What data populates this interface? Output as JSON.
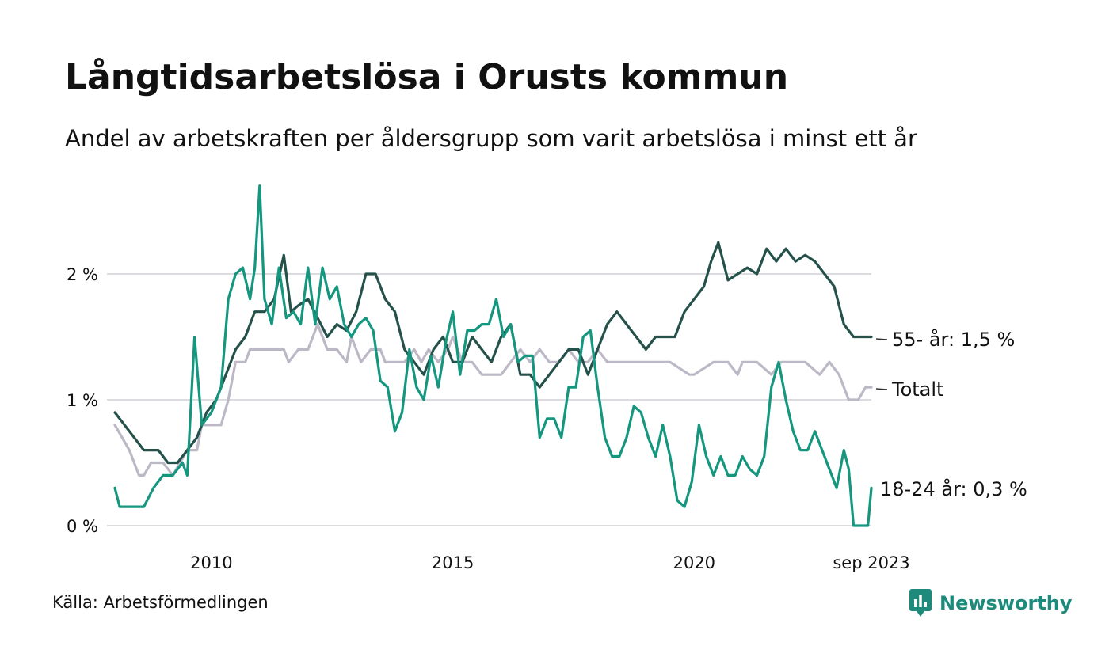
{
  "chart_data": {
    "type": "line",
    "title": "Långtidsarbetslösa i Orusts kommun",
    "subtitle": "Andel av arbetskraften per åldersgrupp som varit arbetslösa i minst ett år",
    "yticks": [
      {
        "value": 0,
        "label": "0 %"
      },
      {
        "value": 1,
        "label": "1 %"
      },
      {
        "value": 2,
        "label": "2 %"
      }
    ],
    "xticks": [
      {
        "value": 2010,
        "label": "2010"
      },
      {
        "value": 2015,
        "label": "2015"
      },
      {
        "value": 2020,
        "label": "2020"
      },
      {
        "value": 2023.67,
        "label": "sep 2023"
      }
    ],
    "xlim": [
      2008.0,
      2023.67
    ],
    "ylim": [
      0,
      2.7
    ],
    "grid": true,
    "series": [
      {
        "name": "Totalt",
        "color": "#bcb8c6",
        "end_label": "Totalt",
        "points": [
          [
            2008.0,
            0.8
          ],
          [
            2008.3,
            0.6
          ],
          [
            2008.5,
            0.4
          ],
          [
            2008.6,
            0.4
          ],
          [
            2008.75,
            0.5
          ],
          [
            2009.0,
            0.5
          ],
          [
            2009.2,
            0.4
          ],
          [
            2009.5,
            0.6
          ],
          [
            2009.7,
            0.6
          ],
          [
            2009.8,
            0.8
          ],
          [
            2010.0,
            0.8
          ],
          [
            2010.2,
            0.8
          ],
          [
            2010.35,
            1.0
          ],
          [
            2010.5,
            1.3
          ],
          [
            2010.7,
            1.3
          ],
          [
            2010.8,
            1.4
          ],
          [
            2011.2,
            1.4
          ],
          [
            2011.5,
            1.4
          ],
          [
            2011.6,
            1.3
          ],
          [
            2011.8,
            1.4
          ],
          [
            2012.0,
            1.4
          ],
          [
            2012.2,
            1.6
          ],
          [
            2012.4,
            1.4
          ],
          [
            2012.6,
            1.4
          ],
          [
            2012.8,
            1.3
          ],
          [
            2012.9,
            1.5
          ],
          [
            2013.1,
            1.3
          ],
          [
            2013.3,
            1.4
          ],
          [
            2013.5,
            1.4
          ],
          [
            2013.6,
            1.3
          ],
          [
            2013.8,
            1.3
          ],
          [
            2014.0,
            1.3
          ],
          [
            2014.2,
            1.4
          ],
          [
            2014.35,
            1.3
          ],
          [
            2014.5,
            1.4
          ],
          [
            2014.7,
            1.3
          ],
          [
            2014.9,
            1.4
          ],
          [
            2015.0,
            1.5
          ],
          [
            2015.2,
            1.3
          ],
          [
            2015.4,
            1.3
          ],
          [
            2015.6,
            1.2
          ],
          [
            2015.8,
            1.2
          ],
          [
            2016.0,
            1.2
          ],
          [
            2016.2,
            1.3
          ],
          [
            2016.4,
            1.4
          ],
          [
            2016.6,
            1.3
          ],
          [
            2016.8,
            1.4
          ],
          [
            2017.0,
            1.3
          ],
          [
            2017.2,
            1.3
          ],
          [
            2017.4,
            1.4
          ],
          [
            2017.6,
            1.3
          ],
          [
            2017.8,
            1.3
          ],
          [
            2018.0,
            1.4
          ],
          [
            2018.2,
            1.3
          ],
          [
            2018.4,
            1.3
          ],
          [
            2018.6,
            1.3
          ],
          [
            2019.0,
            1.3
          ],
          [
            2019.5,
            1.3
          ],
          [
            2019.9,
            1.2
          ],
          [
            2020.0,
            1.2
          ],
          [
            2020.4,
            1.3
          ],
          [
            2020.7,
            1.3
          ],
          [
            2020.9,
            1.2
          ],
          [
            2021.0,
            1.3
          ],
          [
            2021.3,
            1.3
          ],
          [
            2021.6,
            1.2
          ],
          [
            2021.8,
            1.3
          ],
          [
            2022.0,
            1.3
          ],
          [
            2022.3,
            1.3
          ],
          [
            2022.6,
            1.2
          ],
          [
            2022.8,
            1.3
          ],
          [
            2023.0,
            1.2
          ],
          [
            2023.2,
            1.0
          ],
          [
            2023.4,
            1.0
          ],
          [
            2023.55,
            1.1
          ],
          [
            2023.67,
            1.1
          ]
        ]
      },
      {
        "name": "55- år",
        "color": "#24524b",
        "end_label": "55- år: 1,5 %",
        "points": [
          [
            2008.0,
            0.9
          ],
          [
            2008.2,
            0.8
          ],
          [
            2008.4,
            0.7
          ],
          [
            2008.6,
            0.6
          ],
          [
            2008.9,
            0.6
          ],
          [
            2009.1,
            0.5
          ],
          [
            2009.3,
            0.5
          ],
          [
            2009.5,
            0.6
          ],
          [
            2009.7,
            0.7
          ],
          [
            2009.9,
            0.9
          ],
          [
            2010.1,
            1.0
          ],
          [
            2010.3,
            1.2
          ],
          [
            2010.5,
            1.4
          ],
          [
            2010.7,
            1.5
          ],
          [
            2010.9,
            1.7
          ],
          [
            2011.1,
            1.7
          ],
          [
            2011.3,
            1.8
          ],
          [
            2011.5,
            2.15
          ],
          [
            2011.65,
            1.7
          ],
          [
            2011.8,
            1.75
          ],
          [
            2012.0,
            1.8
          ],
          [
            2012.2,
            1.65
          ],
          [
            2012.4,
            1.5
          ],
          [
            2012.6,
            1.6
          ],
          [
            2012.8,
            1.55
          ],
          [
            2013.0,
            1.7
          ],
          [
            2013.2,
            2.0
          ],
          [
            2013.4,
            2.0
          ],
          [
            2013.6,
            1.8
          ],
          [
            2013.8,
            1.7
          ],
          [
            2014.0,
            1.4
          ],
          [
            2014.2,
            1.3
          ],
          [
            2014.4,
            1.2
          ],
          [
            2014.6,
            1.4
          ],
          [
            2014.8,
            1.5
          ],
          [
            2015.0,
            1.3
          ],
          [
            2015.2,
            1.3
          ],
          [
            2015.4,
            1.5
          ],
          [
            2015.6,
            1.4
          ],
          [
            2015.8,
            1.3
          ],
          [
            2016.0,
            1.5
          ],
          [
            2016.2,
            1.6
          ],
          [
            2016.4,
            1.2
          ],
          [
            2016.6,
            1.2
          ],
          [
            2016.8,
            1.1
          ],
          [
            2017.0,
            1.2
          ],
          [
            2017.2,
            1.3
          ],
          [
            2017.4,
            1.4
          ],
          [
            2017.6,
            1.4
          ],
          [
            2017.8,
            1.2
          ],
          [
            2018.0,
            1.4
          ],
          [
            2018.2,
            1.6
          ],
          [
            2018.4,
            1.7
          ],
          [
            2018.6,
            1.6
          ],
          [
            2018.8,
            1.5
          ],
          [
            2019.0,
            1.4
          ],
          [
            2019.2,
            1.5
          ],
          [
            2019.4,
            1.5
          ],
          [
            2019.6,
            1.5
          ],
          [
            2019.8,
            1.7
          ],
          [
            2020.0,
            1.8
          ],
          [
            2020.2,
            1.9
          ],
          [
            2020.35,
            2.1
          ],
          [
            2020.5,
            2.25
          ],
          [
            2020.7,
            1.95
          ],
          [
            2020.9,
            2.0
          ],
          [
            2021.1,
            2.05
          ],
          [
            2021.3,
            2.0
          ],
          [
            2021.5,
            2.2
          ],
          [
            2021.7,
            2.1
          ],
          [
            2021.9,
            2.2
          ],
          [
            2022.1,
            2.1
          ],
          [
            2022.3,
            2.15
          ],
          [
            2022.5,
            2.1
          ],
          [
            2022.7,
            2.0
          ],
          [
            2022.9,
            1.9
          ],
          [
            2023.1,
            1.6
          ],
          [
            2023.3,
            1.5
          ],
          [
            2023.5,
            1.5
          ],
          [
            2023.67,
            1.5
          ]
        ]
      },
      {
        "name": "18-24 år",
        "color": "#14967f",
        "end_label": "18-24 år: 0,3 %",
        "points": [
          [
            2008.0,
            0.3
          ],
          [
            2008.1,
            0.15
          ],
          [
            2008.4,
            0.15
          ],
          [
            2008.6,
            0.15
          ],
          [
            2008.8,
            0.3
          ],
          [
            2009.0,
            0.4
          ],
          [
            2009.2,
            0.4
          ],
          [
            2009.4,
            0.5
          ],
          [
            2009.5,
            0.4
          ],
          [
            2009.65,
            1.5
          ],
          [
            2009.8,
            0.8
          ],
          [
            2010.0,
            0.9
          ],
          [
            2010.2,
            1.1
          ],
          [
            2010.35,
            1.8
          ],
          [
            2010.5,
            2.0
          ],
          [
            2010.65,
            2.05
          ],
          [
            2010.8,
            1.8
          ],
          [
            2010.9,
            2.05
          ],
          [
            2011.0,
            2.7
          ],
          [
            2011.1,
            1.8
          ],
          [
            2011.25,
            1.6
          ],
          [
            2011.4,
            2.05
          ],
          [
            2011.55,
            1.65
          ],
          [
            2011.7,
            1.7
          ],
          [
            2011.85,
            1.6
          ],
          [
            2012.0,
            2.05
          ],
          [
            2012.15,
            1.6
          ],
          [
            2012.3,
            2.05
          ],
          [
            2012.45,
            1.8
          ],
          [
            2012.6,
            1.9
          ],
          [
            2012.75,
            1.6
          ],
          [
            2012.9,
            1.5
          ],
          [
            2013.05,
            1.6
          ],
          [
            2013.2,
            1.65
          ],
          [
            2013.35,
            1.55
          ],
          [
            2013.5,
            1.15
          ],
          [
            2013.65,
            1.1
          ],
          [
            2013.8,
            0.75
          ],
          [
            2013.95,
            0.9
          ],
          [
            2014.1,
            1.4
          ],
          [
            2014.25,
            1.1
          ],
          [
            2014.4,
            1.0
          ],
          [
            2014.55,
            1.35
          ],
          [
            2014.7,
            1.1
          ],
          [
            2014.85,
            1.45
          ],
          [
            2015.0,
            1.7
          ],
          [
            2015.15,
            1.2
          ],
          [
            2015.3,
            1.55
          ],
          [
            2015.45,
            1.55
          ],
          [
            2015.6,
            1.6
          ],
          [
            2015.75,
            1.6
          ],
          [
            2015.9,
            1.8
          ],
          [
            2016.05,
            1.5
          ],
          [
            2016.2,
            1.6
          ],
          [
            2016.35,
            1.3
          ],
          [
            2016.5,
            1.35
          ],
          [
            2016.65,
            1.35
          ],
          [
            2016.8,
            0.7
          ],
          [
            2016.95,
            0.85
          ],
          [
            2017.1,
            0.85
          ],
          [
            2017.25,
            0.7
          ],
          [
            2017.4,
            1.1
          ],
          [
            2017.55,
            1.1
          ],
          [
            2017.7,
            1.5
          ],
          [
            2017.85,
            1.55
          ],
          [
            2018.0,
            1.1
          ],
          [
            2018.15,
            0.7
          ],
          [
            2018.3,
            0.55
          ],
          [
            2018.45,
            0.55
          ],
          [
            2018.6,
            0.7
          ],
          [
            2018.75,
            0.95
          ],
          [
            2018.9,
            0.9
          ],
          [
            2019.05,
            0.7
          ],
          [
            2019.2,
            0.55
          ],
          [
            2019.35,
            0.8
          ],
          [
            2019.5,
            0.55
          ],
          [
            2019.65,
            0.2
          ],
          [
            2019.8,
            0.15
          ],
          [
            2019.95,
            0.35
          ],
          [
            2020.1,
            0.8
          ],
          [
            2020.25,
            0.55
          ],
          [
            2020.4,
            0.4
          ],
          [
            2020.55,
            0.55
          ],
          [
            2020.7,
            0.4
          ],
          [
            2020.85,
            0.4
          ],
          [
            2021.0,
            0.55
          ],
          [
            2021.15,
            0.45
          ],
          [
            2021.3,
            0.4
          ],
          [
            2021.45,
            0.55
          ],
          [
            2021.6,
            1.1
          ],
          [
            2021.75,
            1.3
          ],
          [
            2021.9,
            1.0
          ],
          [
            2022.05,
            0.75
          ],
          [
            2022.2,
            0.6
          ],
          [
            2022.35,
            0.6
          ],
          [
            2022.5,
            0.75
          ],
          [
            2022.65,
            0.6
          ],
          [
            2022.8,
            0.45
          ],
          [
            2022.95,
            0.3
          ],
          [
            2023.1,
            0.6
          ],
          [
            2023.2,
            0.45
          ],
          [
            2023.3,
            0.0
          ],
          [
            2023.6,
            0.0
          ],
          [
            2023.67,
            0.3
          ]
        ]
      }
    ]
  },
  "source": "Källa: Arbetsförmedlingen",
  "brand": "Newsworthy",
  "brand_color": "#1e8a7c",
  "grid_color": "#dcdce0"
}
